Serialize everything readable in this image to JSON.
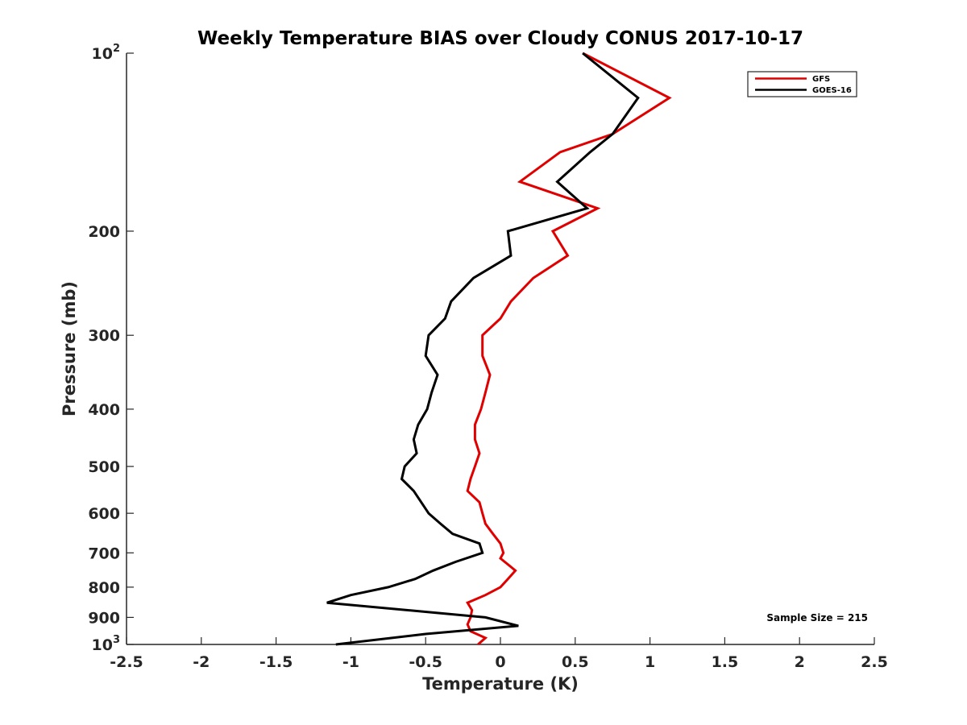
{
  "chart_data": {
    "type": "line",
    "title": "Weekly Temperature BIAS over Cloudy CONUS 2017-10-17",
    "xlabel": "Temperature (K)",
    "ylabel": "Pressure (mb)",
    "xlim": [
      -2.5,
      2.5
    ],
    "ylim": [
      100,
      1000
    ],
    "y_scale": "log",
    "y_reversed": true,
    "x_ticks": [
      "-2.5",
      "-2",
      "-1.5",
      "-1",
      "-0.5",
      "0",
      "0.5",
      "1",
      "1.5",
      "2",
      "2.5"
    ],
    "y_ticks": [
      {
        "value": 100,
        "base": "10",
        "exp": "2"
      },
      {
        "value": 200,
        "label": "200"
      },
      {
        "value": 300,
        "label": "300"
      },
      {
        "value": 400,
        "label": "400"
      },
      {
        "value": 500,
        "label": "500"
      },
      {
        "value": 600,
        "label": "600"
      },
      {
        "value": 700,
        "label": "700"
      },
      {
        "value": 800,
        "label": "800"
      },
      {
        "value": 900,
        "label": "900"
      },
      {
        "value": 1000,
        "base": "10",
        "exp": "3"
      }
    ],
    "grid": false,
    "legend_position": "top-right",
    "series": [
      {
        "name": "GFS",
        "color": "#e00000",
        "points": [
          [
            0.55,
            100
          ],
          [
            1.13,
            119
          ],
          [
            0.75,
            137
          ],
          [
            0.4,
            147
          ],
          [
            0.13,
            165
          ],
          [
            0.65,
            183
          ],
          [
            0.35,
            200
          ],
          [
            0.45,
            220
          ],
          [
            0.22,
            240
          ],
          [
            0.07,
            263
          ],
          [
            0.0,
            281
          ],
          [
            -0.12,
            300
          ],
          [
            -0.12,
            325
          ],
          [
            -0.07,
            350
          ],
          [
            -0.1,
            375
          ],
          [
            -0.13,
            400
          ],
          [
            -0.17,
            425
          ],
          [
            -0.17,
            450
          ],
          [
            -0.14,
            475
          ],
          [
            -0.17,
            500
          ],
          [
            -0.2,
            525
          ],
          [
            -0.22,
            550
          ],
          [
            -0.14,
            575
          ],
          [
            -0.12,
            600
          ],
          [
            -0.1,
            625
          ],
          [
            -0.05,
            650
          ],
          [
            0.0,
            675
          ],
          [
            0.02,
            700
          ],
          [
            0.0,
            715
          ],
          [
            0.1,
            750
          ],
          [
            0.05,
            775
          ],
          [
            0.0,
            800
          ],
          [
            -0.1,
            825
          ],
          [
            -0.22,
            850
          ],
          [
            -0.19,
            875
          ],
          [
            -0.2,
            900
          ],
          [
            -0.22,
            925
          ],
          [
            -0.2,
            950
          ],
          [
            -0.1,
            975
          ],
          [
            -0.15,
            1000
          ]
        ]
      },
      {
        "name": "GOES-16",
        "color": "#000000",
        "points": [
          [
            0.55,
            100
          ],
          [
            0.92,
            119
          ],
          [
            0.75,
            137
          ],
          [
            0.6,
            147
          ],
          [
            0.38,
            165
          ],
          [
            0.58,
            183
          ],
          [
            0.05,
            200
          ],
          [
            0.07,
            220
          ],
          [
            -0.18,
            240
          ],
          [
            -0.33,
            263
          ],
          [
            -0.37,
            281
          ],
          [
            -0.48,
            300
          ],
          [
            -0.5,
            325
          ],
          [
            -0.42,
            350
          ],
          [
            -0.46,
            375
          ],
          [
            -0.49,
            400
          ],
          [
            -0.55,
            425
          ],
          [
            -0.58,
            450
          ],
          [
            -0.56,
            475
          ],
          [
            -0.64,
            500
          ],
          [
            -0.66,
            525
          ],
          [
            -0.58,
            550
          ],
          [
            -0.48,
            600
          ],
          [
            -0.4,
            625
          ],
          [
            -0.32,
            650
          ],
          [
            -0.14,
            675
          ],
          [
            -0.12,
            700
          ],
          [
            -0.3,
            725
          ],
          [
            -0.45,
            750
          ],
          [
            -0.57,
            775
          ],
          [
            -0.75,
            800
          ],
          [
            -1.0,
            825
          ],
          [
            -1.16,
            850
          ],
          [
            -0.1,
            900
          ],
          [
            0.12,
            930
          ],
          [
            -0.5,
            960
          ],
          [
            -1.1,
            1000
          ]
        ]
      }
    ],
    "annotation": "Sample Size = 215"
  }
}
